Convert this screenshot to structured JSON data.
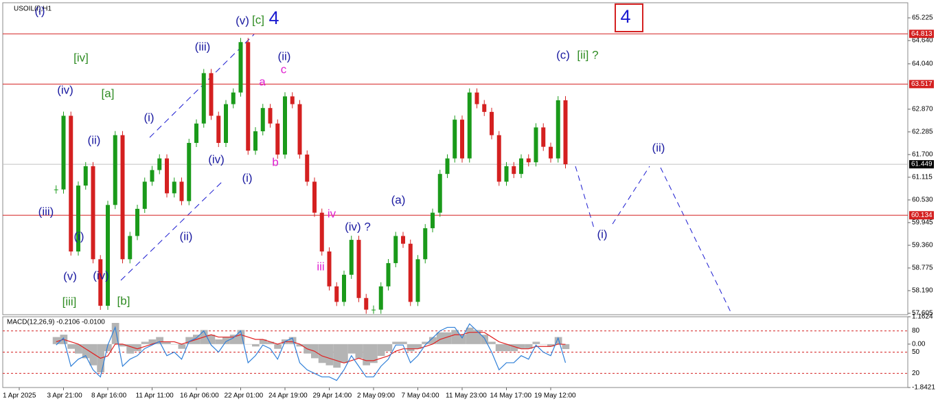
{
  "chart_data": {
    "type": "candlestick",
    "title": "USOIL(f),H1",
    "up_color": "#1a9a1a",
    "down_color": "#d42020",
    "categories": [
      null,
      null,
      "1 Apr 2025",
      null,
      null,
      null,
      null,
      null,
      "3 Apr 21:00",
      null,
      null,
      null,
      null,
      null,
      "8 Apr 16:00",
      null,
      null,
      null,
      null,
      null,
      "11 Apr 11:00",
      null,
      null,
      null,
      null,
      null,
      "16 Apr 06:00",
      null,
      null,
      null,
      null,
      null,
      "22 Apr 01:00",
      null,
      null,
      null,
      null,
      null,
      "24 Apr 19:00",
      null,
      null,
      null,
      null,
      null,
      "29 Apr 14:00",
      null,
      null,
      null,
      null,
      null,
      "2 May 09:00",
      null,
      null,
      null,
      null,
      null,
      "7 May 04:00",
      null,
      null,
      null,
      null,
      null,
      "11 May 23:00",
      null,
      null,
      null,
      null,
      null,
      "14 May 17:00",
      null,
      null,
      null,
      null,
      null,
      "19 May 12:00",
      null,
      null
    ],
    "values": [
      null,
      null,
      null,
      null,
      null,
      null,
      null,
      60.8,
      62.7,
      59.2,
      60.9,
      61.4,
      59.0,
      57.8,
      60.4,
      62.2,
      59.0,
      59.6,
      60.3,
      61.0,
      61.3,
      61.6,
      60.7,
      61.0,
      60.5,
      62.0,
      62.5,
      63.8,
      62.7,
      62.0,
      63.0,
      63.3,
      64.6,
      61.8,
      62.3,
      62.9,
      62.5,
      61.7,
      63.2,
      63.0,
      61.7,
      61.0,
      60.2,
      59.2,
      58.3,
      57.9,
      58.6,
      59.5,
      58.0,
      57.7,
      57.7,
      58.3,
      58.9,
      59.6,
      59.4,
      57.9,
      59.0,
      59.8,
      60.2,
      61.2,
      61.6,
      62.6,
      61.6,
      63.3,
      63.0,
      62.8,
      62.2,
      61.0,
      61.4,
      61.2,
      61.6,
      61.5,
      62.4,
      61.9,
      61.6,
      63.1,
      61.449
    ],
    "ylim": [
      57.57,
      65.615
    ],
    "yticks": [
      65.225,
      {
        "value": 64.64,
        "label": "64.640"
      },
      {
        "value": 64.04,
        "label": "64.040"
      },
      {
        "value": 62.87,
        "label": "62.870"
      },
      62.285,
      {
        "value": 61.7,
        "label": "61.700"
      },
      61.115,
      {
        "value": 60.53,
        "label": "60.530"
      },
      59.945,
      {
        "value": 59.36,
        "label": "59.360"
      },
      58.775,
      {
        "value": 58.19,
        "label": "58.190"
      },
      57.605
    ],
    "levels": [
      64.813,
      63.517,
      60.134
    ],
    "level_color": "#d42020",
    "current_price": 61.449,
    "annotations": [
      {
        "text": "(i)",
        "color": "#1a1aa0"
      },
      {
        "text": "[iv]",
        "color": "#2e8b22"
      },
      {
        "text": "(iv)",
        "color": "#1a1aa0"
      },
      {
        "text": "[a]",
        "color": "#2e8b22"
      },
      {
        "text": "(iii)",
        "color": "#1a1aa0"
      },
      {
        "text": "(ii)",
        "color": "#1a1aa0"
      },
      {
        "text": "(i)",
        "color": "#1a1aa0"
      },
      {
        "text": "(v)",
        "color": "#1a1aa0"
      },
      {
        "text": "(iv)",
        "color": "#1a1aa0"
      },
      {
        "text": "[iii]",
        "color": "#2e8b22"
      },
      {
        "text": "[b]",
        "color": "#2e8b22"
      },
      {
        "text": "(i)",
        "color": "#1a1aa0"
      },
      {
        "text": "(iii)",
        "color": "#1a1aa0"
      },
      {
        "text": "(iv)",
        "color": "#1a1aa0"
      },
      {
        "text": "(ii)",
        "color": "#1a1aa0"
      },
      {
        "text": "(v)",
        "color": "#1a1aa0"
      },
      {
        "text": "[c]",
        "color": "#2e8b22"
      },
      {
        "text": "4",
        "color": "#1a1ad0"
      },
      {
        "text": "(ii)",
        "color": "#1a1aa0"
      },
      {
        "text": "c",
        "color": "#e020d0"
      },
      {
        "text": "a",
        "color": "#e020d0"
      },
      {
        "text": "b",
        "color": "#e020d0"
      },
      {
        "text": "(i)",
        "color": "#1a1aa0"
      },
      {
        "text": "iv",
        "color": "#e020d0"
      },
      {
        "text": "(iv) ?",
        "color": "#1a1aa0"
      },
      {
        "text": "iii",
        "color": "#e020d0"
      },
      {
        "text": "(a)",
        "color": "#1a1aa0"
      },
      {
        "text": "(c)",
        "color": "#1a1aa0"
      },
      {
        "text": "[ii] ?",
        "color": "#2e8b22"
      },
      {
        "text": "(ii)",
        "color": "#1a1aa0"
      },
      {
        "text": "(i)",
        "color": "#1a1aa0"
      },
      {
        "text": "4",
        "color": "#1a1ad0"
      }
    ],
    "indicator": {
      "type": "macd",
      "title": "MACD(12,26,9) -0.2106 -0.0100",
      "ylim": [
        -1.8421,
        1.1624
      ],
      "yticks": [
        1.1624,
        {
          "value": 0,
          "label": "0.00"
        },
        -1.8421
      ],
      "y2lim": [
        0,
        100
      ],
      "y2ticks": [
        80,
        50,
        20
      ],
      "series": [
        {
          "color": "#b4b4b4",
          "values": [
            null,
            null,
            null,
            null,
            null,
            null,
            null,
            0.3,
            0.4,
            -0.2,
            -0.4,
            -0.6,
            -0.9,
            -1.2,
            -0.3,
            0.9,
            -0.1,
            -0.4,
            -0.3,
            0.1,
            0.2,
            0.3,
            0.1,
            0.0,
            -0.2,
            0.3,
            0.4,
            0.6,
            0.4,
            0.2,
            0.3,
            0.4,
            0.6,
            0.0,
            -0.1,
            0.2,
            0.1,
            -0.2,
            0.2,
            0.3,
            -0.1,
            -0.4,
            -0.6,
            -0.8,
            -0.9,
            -1.0,
            -0.8,
            -0.4,
            -0.6,
            -0.9,
            -0.8,
            -0.5,
            -0.3,
            0.1,
            0.1,
            -0.3,
            -0.2,
            0.1,
            0.3,
            0.5,
            0.5,
            0.6,
            0.4,
            0.7,
            0.6,
            0.4,
            0.1,
            -0.3,
            -0.3,
            -0.3,
            -0.2,
            -0.2,
            0.1,
            0.0,
            -0.1,
            0.3,
            -0.2106
          ]
        },
        {
          "color": "#e02020",
          "values": [
            null,
            null,
            null,
            null,
            null,
            null,
            null,
            0.1,
            0.2,
            0.1,
            0.0,
            -0.2,
            -0.4,
            -0.6,
            -0.5,
            0.0,
            0.0,
            -0.1,
            -0.2,
            -0.1,
            0.0,
            0.1,
            0.1,
            0.1,
            0.0,
            0.1,
            0.2,
            0.3,
            0.4,
            0.3,
            0.3,
            0.3,
            0.4,
            0.3,
            0.2,
            0.2,
            0.1,
            0.0,
            0.1,
            0.1,
            0.0,
            -0.2,
            -0.3,
            -0.5,
            -0.6,
            -0.7,
            -0.8,
            -0.7,
            -0.6,
            -0.7,
            -0.7,
            -0.6,
            -0.5,
            -0.3,
            -0.2,
            -0.2,
            -0.2,
            -0.1,
            0.0,
            0.2,
            0.3,
            0.4,
            0.4,
            0.5,
            0.5,
            0.5,
            0.3,
            0.1,
            0.0,
            -0.1,
            -0.2,
            -0.2,
            -0.1,
            -0.1,
            -0.1,
            0.0,
            -0.01
          ]
        },
        {
          "color": "#2f7fd8",
          "axis": "y2",
          "values": [
            null,
            null,
            null,
            null,
            null,
            null,
            null,
            60,
            70,
            30,
            40,
            45,
            25,
            15,
            60,
            85,
            30,
            40,
            45,
            55,
            60,
            65,
            45,
            50,
            40,
            65,
            70,
            80,
            60,
            50,
            65,
            70,
            80,
            35,
            45,
            60,
            55,
            40,
            65,
            70,
            35,
            25,
            20,
            15,
            15,
            10,
            25,
            45,
            30,
            15,
            15,
            30,
            40,
            60,
            60,
            35,
            45,
            60,
            70,
            80,
            85,
            85,
            70,
            90,
            80,
            70,
            50,
            25,
            35,
            35,
            45,
            40,
            60,
            50,
            45,
            70,
            35
          ]
        }
      ]
    }
  }
}
